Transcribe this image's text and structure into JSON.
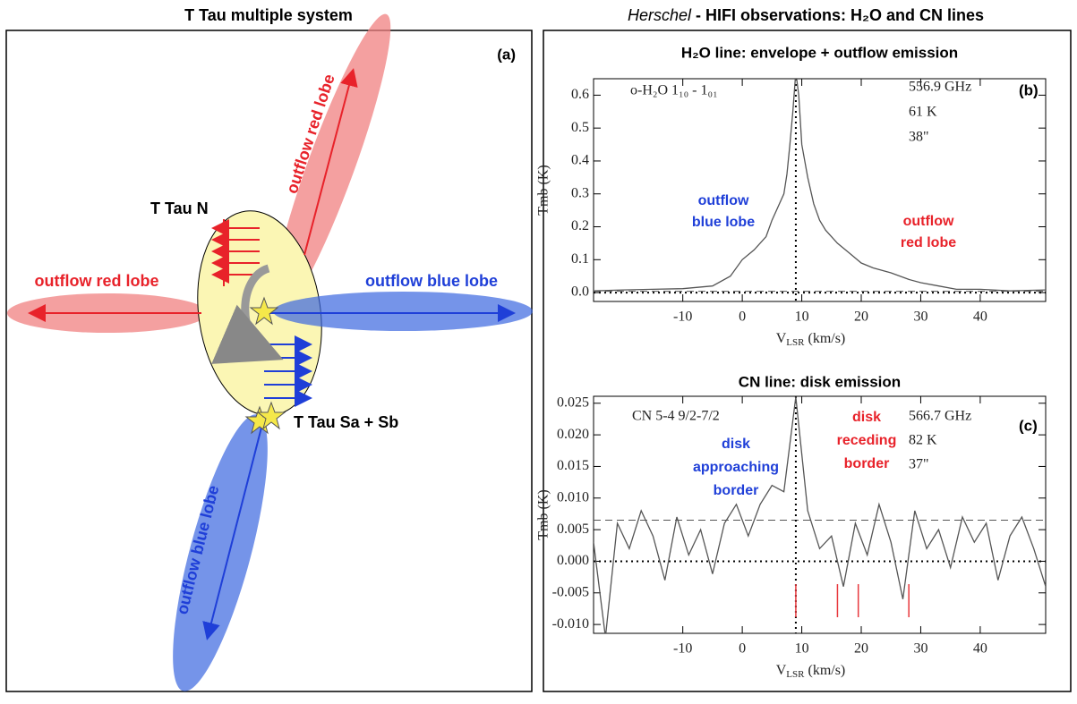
{
  "header": {
    "left_title": "T Tau multiple system",
    "right_title_italic": "Herschel",
    "right_title": " - HIFI observations: H₂O and CN lines"
  },
  "diagram": {
    "panel_label": "(a)",
    "north_label": "T Tau N",
    "south_label": "T Tau Sa + Sb",
    "lobes": {
      "red_up": "outflow red lobe",
      "red_left": "outflow red lobe",
      "blue_right": "outflow blue lobe",
      "blue_down": "outflow blue lobe"
    }
  },
  "chart_data": [
    {
      "type": "line",
      "title": "H₂O line: envelope + outflow emission",
      "panel_label": "(b)",
      "line_id": "o-H₂O 1₁₀ - 1₀₁",
      "annotations": [
        "556.9 GHz",
        "61 K",
        "38\""
      ],
      "blue_label": [
        "outflow",
        "blue lobe"
      ],
      "red_label": [
        "outflow",
        "red lobe"
      ],
      "ylabel": "Tmb (K)",
      "xlabel": {
        "main": "V",
        "sub": "LSR",
        "unit": " (km/s)"
      },
      "x": [
        -25,
        -20,
        -15,
        -10,
        -5,
        -2,
        0,
        2,
        4,
        5,
        6,
        7,
        7.5,
        8,
        8.5,
        9,
        9.5,
        10,
        11,
        12,
        13,
        14,
        16,
        18,
        20,
        22,
        25,
        28,
        30,
        33,
        36,
        40,
        45,
        51
      ],
      "values": [
        0.005,
        0.008,
        0.01,
        0.012,
        0.02,
        0.05,
        0.1,
        0.13,
        0.17,
        0.22,
        0.26,
        0.3,
        0.36,
        0.45,
        0.55,
        0.67,
        0.6,
        0.45,
        0.35,
        0.27,
        0.22,
        0.19,
        0.15,
        0.12,
        0.09,
        0.075,
        0.06,
        0.04,
        0.03,
        0.02,
        0.01,
        0.01,
        0.005,
        0.008
      ],
      "color": "#555555",
      "xlim": [
        -25,
        51
      ],
      "xticks": [
        -10,
        0,
        10,
        20,
        30,
        40
      ],
      "ylim": [
        -0.027,
        0.65
      ],
      "yticks": [
        {
          "value": 0,
          "label": "0.0"
        },
        0.1,
        0.2,
        0.3,
        0.4,
        0.5,
        0.6
      ],
      "vline": 9,
      "dotted_level": 0,
      "dashed_level": 0.004
    },
    {
      "type": "line",
      "title": "CN line: disk emission",
      "panel_label": "(c)",
      "line_id": "CN 5-4 9/2-7/2",
      "annotations": [
        "566.7 GHz",
        "82 K",
        "37\""
      ],
      "blue_label": [
        "disk",
        "approaching",
        "border"
      ],
      "red_label": [
        "disk",
        "receding",
        "border"
      ],
      "ylabel": "Tmb (K)",
      "xlabel": {
        "main": "V",
        "sub": "LSR",
        "unit": " (km/s)"
      },
      "x": [
        -25,
        -23,
        -21,
        -19,
        -17,
        -15,
        -13,
        -11,
        -9,
        -7,
        -5,
        -3,
        -1,
        1,
        3,
        5,
        7,
        9,
        11,
        13,
        15,
        17,
        19,
        21,
        23,
        25,
        27,
        29,
        31,
        33,
        35,
        37,
        39,
        41,
        43,
        45,
        47,
        49,
        51
      ],
      "values": [
        0.003,
        -0.012,
        0.006,
        0.002,
        0.008,
        0.004,
        -0.003,
        0.007,
        0.001,
        0.005,
        -0.002,
        0.006,
        0.009,
        0.004,
        0.009,
        0.012,
        0.011,
        0.026,
        0.008,
        0.002,
        0.004,
        -0.004,
        0.006,
        0.001,
        0.009,
        0.003,
        -0.006,
        0.008,
        0.002,
        0.005,
        -0.001,
        0.007,
        0.003,
        0.006,
        -0.003,
        0.004,
        0.007,
        0.002,
        -0.004
      ],
      "color": "#555555",
      "xlim": [
        -25,
        51
      ],
      "xticks": [
        -10,
        0,
        10,
        20,
        30,
        40
      ],
      "ylim": [
        -0.0114,
        0.0261
      ],
      "yticks": [
        {
          "value": -0.01,
          "label": "-0.010"
        },
        -0.005,
        {
          "value": 0,
          "label": "0.000"
        },
        0.005,
        {
          "value": 0.01,
          "label": "0.010"
        },
        0.015,
        {
          "value": 0.02,
          "label": "0.020"
        },
        0.025
      ],
      "vline": 9,
      "dotted_level": 0,
      "dashed_level": 0.0065,
      "markers": [
        9,
        16,
        19.5,
        28
      ],
      "marker_color": "#e8383d"
    }
  ]
}
